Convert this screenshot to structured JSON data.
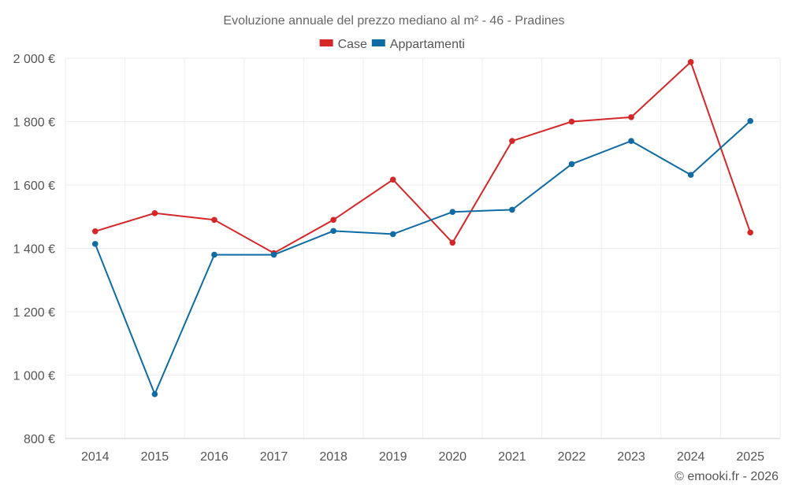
{
  "chart_data": {
    "type": "line",
    "title": "Evoluzione annuale del prezzo mediano al m² - 46 - Pradines",
    "categories": [
      "2014",
      "2015",
      "2016",
      "2017",
      "2018",
      "2019",
      "2020",
      "2021",
      "2022",
      "2023",
      "2024",
      "2025"
    ],
    "series": [
      {
        "name": "Case",
        "color": "#d62728",
        "values": [
          1454,
          1511,
          1490,
          1385,
          1490,
          1617,
          1418,
          1739,
          1800,
          1814,
          1988,
          1450
        ]
      },
      {
        "name": "Appartamenti",
        "color": "#0f6ba3",
        "values": [
          1414,
          940,
          1380,
          1380,
          1455,
          1445,
          1515,
          1522,
          1666,
          1739,
          1632,
          1802
        ]
      }
    ],
    "ylim": [
      800,
      2000
    ],
    "yticks": [
      800,
      1000,
      1200,
      1400,
      1600,
      1800,
      2000
    ],
    "ytick_labels": [
      "800 €",
      "1 000 €",
      "1 200 €",
      "1 400 €",
      "1 600 €",
      "1 800 €",
      "2 000 €"
    ],
    "xlabel": "",
    "ylabel": "",
    "grid": true,
    "legend_position": "top-center"
  },
  "credit": "© emooki.fr - 2026"
}
